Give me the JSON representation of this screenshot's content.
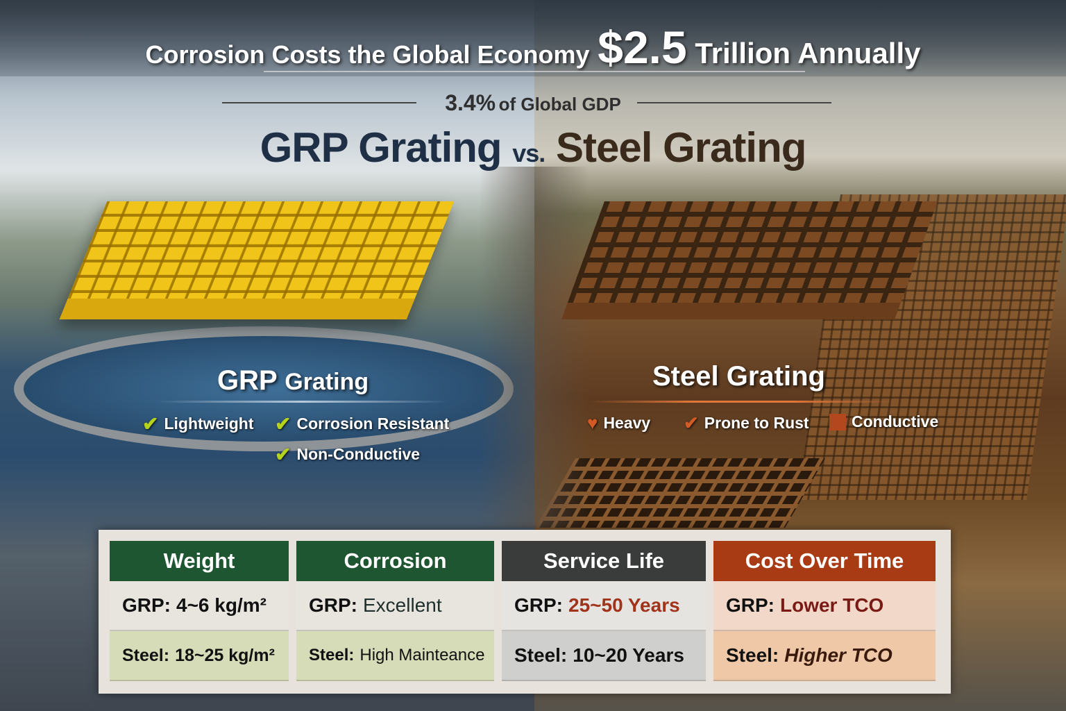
{
  "header": {
    "title_prefix": "Corrosion Costs the Global Economy",
    "title_amount": "$2.5",
    "title_suffix": "Trillion Annually",
    "gdp_pct": "3.4%",
    "gdp_text": "of Global GDP",
    "vs_left": "GRP Grating",
    "vs_mid": "vs.",
    "vs_right": "Steel Grating"
  },
  "grp": {
    "title_strong": "GRP",
    "title_rest": "Grating",
    "features": [
      "Lightweight",
      "Corrosion Resistant",
      "Non-Conductive"
    ],
    "icon": "check-icon",
    "accent": "#b5d21c"
  },
  "steel": {
    "title": "Steel Grating",
    "features": [
      {
        "label": "Heavy",
        "icon": "heart-icon"
      },
      {
        "label": "Prone to Rust",
        "icon": "check-icon"
      },
      {
        "label": "Conductive",
        "icon": "square-icon"
      }
    ],
    "accent": "#d25a25"
  },
  "comparison": [
    {
      "header": "Weight",
      "header_color": "#1f5632",
      "grp_label": "GRP:",
      "grp_value": "4~6 kg/m²",
      "steel_label": "Steel:",
      "steel_value": "18~25 kg/m²",
      "grp_bg": "#e8e5df",
      "steel_bg": "#d7dcb8"
    },
    {
      "header": "Corrosion",
      "header_color": "#1f5632",
      "grp_label": "GRP:",
      "grp_value": "Excellent",
      "steel_label": "Steel:",
      "steel_value": "High Mainteance",
      "grp_bg": "#e8e5df",
      "steel_bg": "#d7dcb8"
    },
    {
      "header": "Service Life",
      "header_color": "#3a3c3c",
      "grp_label": "GRP:",
      "grp_value": "25~50 Years",
      "steel_label": "Steel:",
      "steel_value": "10~20 Years",
      "grp_bg": "#e6e4e0",
      "steel_bg": "#cfcfcd"
    },
    {
      "header": "Cost Over Time",
      "header_color": "#a83a14",
      "grp_label": "GRP:",
      "grp_value": "Lower TCO",
      "steel_label": "Steel:",
      "steel_value": "Higher TCO",
      "grp_bg": "#f1d8c8",
      "steel_bg": "#efc8a8"
    }
  ]
}
